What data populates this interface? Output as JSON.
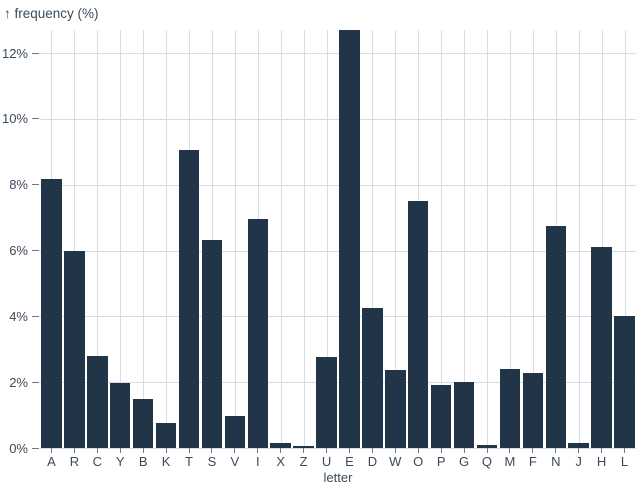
{
  "title": "↑ frequency (%)",
  "chart_data": {
    "type": "bar",
    "title": "↑ frequency (%)",
    "xlabel": "letter",
    "ylabel": "frequency (%)",
    "categories": [
      "A",
      "R",
      "C",
      "Y",
      "B",
      "K",
      "T",
      "S",
      "V",
      "I",
      "X",
      "Z",
      "U",
      "E",
      "D",
      "W",
      "O",
      "P",
      "G",
      "Q",
      "M",
      "F",
      "N",
      "J",
      "H",
      "L"
    ],
    "values": [
      8.167,
      5.987,
      2.782,
      1.974,
      1.492,
      0.772,
      9.056,
      6.327,
      0.978,
      6.966,
      0.15,
      0.074,
      2.758,
      12.702,
      4.253,
      2.36,
      7.507,
      1.929,
      2.015,
      0.095,
      2.406,
      2.288,
      6.749,
      0.153,
      6.094,
      4.025
    ],
    "y_ticks": [
      0,
      2,
      4,
      6,
      8,
      10,
      12
    ],
    "y_tick_labels": [
      "0%",
      "2%",
      "4%",
      "6%",
      "8%",
      "10%",
      "12%"
    ],
    "ylim": [
      0,
      12.702
    ],
    "grid": "both",
    "legend": "none",
    "colors": {
      "bar": "#223548",
      "grid": "#d9dde2",
      "text": "#3b4a5a",
      "tick_mark": "#6e7a87"
    }
  }
}
